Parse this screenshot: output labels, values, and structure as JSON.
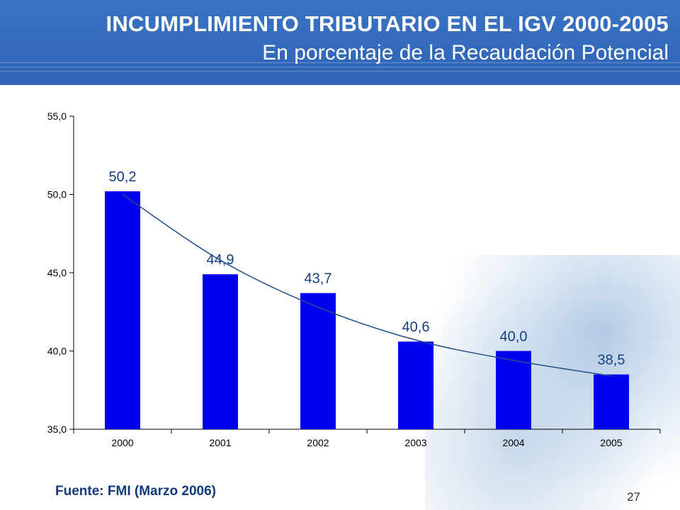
{
  "slide": {
    "title": "INCUMPLIMIENTO TRIBUTARIO EN EL IGV 2000-2005",
    "subtitle": "En porcentaje de la Recaudación Potencial",
    "source": "Fuente: FMI (Marzo 2006)",
    "page_number": "27"
  },
  "colors": {
    "header": "#3068bf",
    "bar": "#0000ee",
    "label": "#153f7e",
    "trend": "#1f4e8c",
    "axis": "#000000"
  },
  "chart_data": {
    "type": "bar",
    "title": "INCUMPLIMIENTO TRIBUTARIO EN EL IGV 2000-2005",
    "xlabel": "",
    "ylabel": "",
    "categories": [
      "2000",
      "2001",
      "2002",
      "2003",
      "2004",
      "2005"
    ],
    "values": [
      50.2,
      44.9,
      43.7,
      40.6,
      40.0,
      38.5
    ],
    "data_labels": [
      "50,2",
      "44,9",
      "43,7",
      "40,6",
      "40,0",
      "38,5"
    ],
    "ylim": [
      35.0,
      55.0
    ],
    "yticks": [
      35.0,
      40.0,
      45.0,
      50.0,
      55.0
    ],
    "ytick_labels": [
      "35,0",
      "40,0",
      "45,0",
      "50,0",
      "55,0"
    ],
    "trendline": {
      "type": "smooth",
      "values": [
        50.0,
        45.8,
        42.8,
        40.7,
        39.4,
        38.4
      ]
    },
    "grid": false,
    "legend": "none"
  }
}
